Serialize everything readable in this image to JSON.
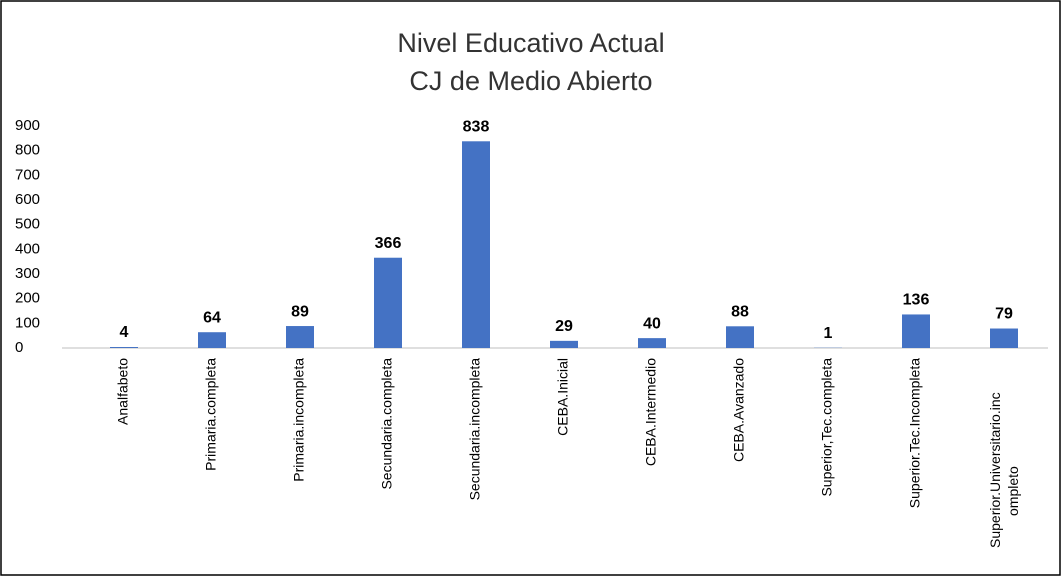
{
  "chart_data": {
    "type": "bar",
    "title": "Nivel Educativo Actual",
    "subtitle": "CJ de Medio Abierto",
    "categories": [
      "Analfabeto",
      "Primaria.completa",
      "Primaria.incompleta",
      "Secundaria.completa",
      "Secundaria.incompleta",
      "CEBA.Inicial",
      "CEBA.Intermedio",
      "CEBA.Avanzado",
      "Superior,Tec.completa",
      "Superior.Tec.Incompleta",
      "Superior.Universitario.incompleto"
    ],
    "values": [
      4,
      64,
      89,
      366,
      838,
      29,
      40,
      88,
      1,
      136,
      79
    ],
    "color": "#4472c4",
    "ylim": [
      0,
      900
    ],
    "yticks": [
      0,
      100,
      200,
      300,
      400,
      500,
      600,
      700,
      800,
      900
    ],
    "grid": false
  }
}
